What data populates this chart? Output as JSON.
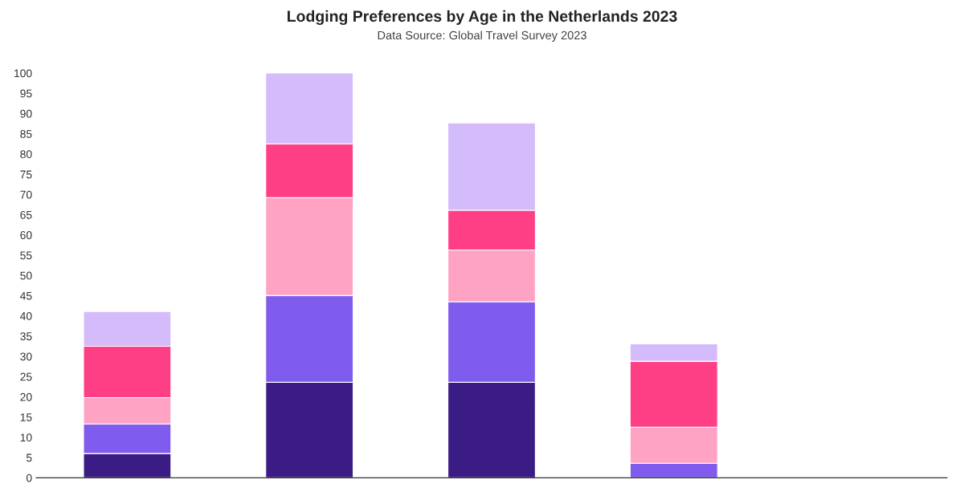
{
  "chart_data": {
    "type": "bar",
    "title": "Lodging Preferences by Age in the Netherlands 2023",
    "subtitle": "Data Source: Global Travel Survey 2023",
    "categories": [
      null,
      null,
      null,
      null,
      null
    ],
    "stacked": true,
    "series": [
      {
        "color": "#3a1c84",
        "values": [
          6,
          23.6,
          23.6,
          null,
          null
        ]
      },
      {
        "color": "#7f5ced",
        "values": [
          7.3,
          21.4,
          19.9,
          3.6,
          null
        ]
      },
      {
        "color": "#ffa3c4",
        "values": [
          6.5,
          24.2,
          12.8,
          8.9,
          null
        ]
      },
      {
        "color": "#ff3f85",
        "values": [
          12.7,
          13.3,
          9.8,
          16.3,
          null
        ]
      },
      {
        "color": "#d4bbfa",
        "values": [
          8.6,
          17.5,
          21.6,
          4.3,
          null
        ]
      }
    ],
    "ylim": [
      0,
      100
    ],
    "yticks": [
      0,
      5,
      10,
      15,
      20,
      25,
      30,
      35,
      40,
      45,
      50,
      55,
      60,
      65,
      70,
      75,
      80,
      85,
      90,
      95,
      100
    ],
    "grid": false,
    "legend": false
  }
}
